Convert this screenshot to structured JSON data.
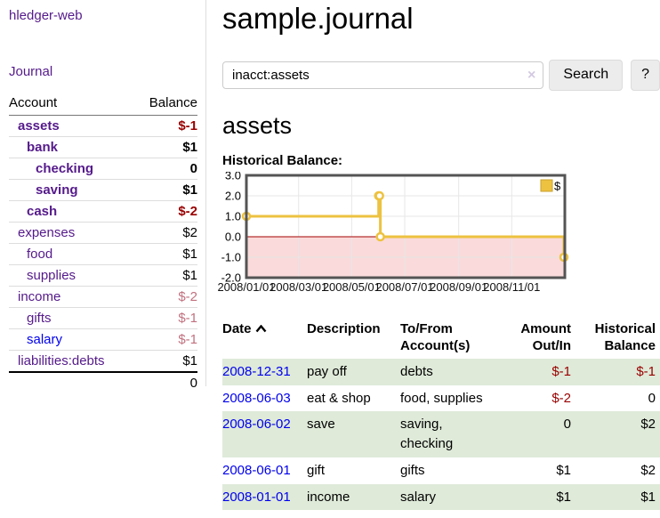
{
  "app": {
    "title": "hledger-web",
    "nav": {
      "journal": "Journal"
    }
  },
  "sidebar": {
    "headers": {
      "account": "Account",
      "balance": "Balance"
    },
    "rows": [
      {
        "account": "assets",
        "balance": "$-1",
        "depth": 1,
        "bold": true,
        "neg": "strong",
        "link": "purple"
      },
      {
        "account": "bank",
        "balance": "$1",
        "depth": 2,
        "bold": true,
        "neg": "",
        "link": "purple"
      },
      {
        "account": "checking",
        "balance": "0",
        "depth": 3,
        "bold": true,
        "neg": "",
        "link": "purple"
      },
      {
        "account": "saving",
        "balance": "$1",
        "depth": 3,
        "bold": true,
        "neg": "",
        "link": "purple"
      },
      {
        "account": "cash",
        "balance": "$-2",
        "depth": 2,
        "bold": true,
        "neg": "strong",
        "link": "purple"
      },
      {
        "account": "expenses",
        "balance": "$2",
        "depth": 1,
        "bold": false,
        "neg": "",
        "link": "purple"
      },
      {
        "account": "food",
        "balance": "$1",
        "depth": 2,
        "bold": false,
        "neg": "",
        "link": "purple"
      },
      {
        "account": "supplies",
        "balance": "$1",
        "depth": 2,
        "bold": false,
        "neg": "",
        "link": "purple"
      },
      {
        "account": "income",
        "balance": "$-2",
        "depth": 1,
        "bold": false,
        "neg": "muted",
        "link": "purple"
      },
      {
        "account": "gifts",
        "balance": "$-1",
        "depth": 2,
        "bold": false,
        "neg": "muted",
        "link": "purple"
      },
      {
        "account": "salary",
        "balance": "$-1",
        "depth": 2,
        "bold": false,
        "neg": "muted",
        "link": "blue"
      },
      {
        "account": "liabilities:debts",
        "balance": "$1",
        "depth": 1,
        "bold": false,
        "neg": "",
        "link": "purple"
      }
    ],
    "total": "0"
  },
  "main": {
    "title": "sample.journal",
    "search": {
      "value": "inacct:assets",
      "clear_icon": "×",
      "button_label": "Search",
      "help_label": "?"
    },
    "account_heading": "assets",
    "chart_label": "Historical Balance:"
  },
  "chart_data": {
    "type": "line",
    "title": "Historical Balance",
    "step": true,
    "x_range": [
      "2008-01-01",
      "2009-01-01"
    ],
    "ylim": [
      -2,
      3
    ],
    "y_ticks": [
      "3.0",
      "2.0",
      "1.0",
      "0.0",
      "-1.0",
      "-2.0"
    ],
    "x_ticks": [
      {
        "date": "2008-01-01",
        "label": "2008/01/01"
      },
      {
        "date": "2008-03-01",
        "label": "2008/03/01"
      },
      {
        "date": "2008-05-01",
        "label": "2008/05/01"
      },
      {
        "date": "2008-07-01",
        "label": "2008/07/01"
      },
      {
        "date": "2008-09-01",
        "label": "2008/09/01"
      },
      {
        "date": "2008-11-01",
        "label": "2008/11/01"
      }
    ],
    "series": [
      {
        "name": "$",
        "color": "#edc240",
        "points": [
          {
            "date": "2008-01-01",
            "value": 1
          },
          {
            "date": "2008-06-01",
            "value": 2
          },
          {
            "date": "2008-06-02",
            "value": 2
          },
          {
            "date": "2008-06-03",
            "value": 0
          },
          {
            "date": "2008-12-31",
            "value": -1
          }
        ]
      }
    ],
    "legend": {
      "label": "$",
      "position": "top-right"
    },
    "grid": true,
    "grid_color": "#e7e7e7",
    "border_color": "#545454",
    "zero_line_color": "#a40000",
    "negative_fill": "#fadada"
  },
  "register": {
    "headers": {
      "date": "Date",
      "description": "Description",
      "account": "To/From Account(s)",
      "amount": "Amount Out/In",
      "balance": "Historical Balance"
    },
    "rows": [
      {
        "date": "2008-12-31",
        "description": "pay off",
        "accounts": "debts",
        "amount": "$-1",
        "balance": "$-1"
      },
      {
        "date": "2008-06-03",
        "description": "eat & shop",
        "accounts": "food, supplies",
        "amount": "$-2",
        "balance": "0"
      },
      {
        "date": "2008-06-02",
        "description": "save",
        "accounts": "saving, checking",
        "amount": "0",
        "balance": "$2"
      },
      {
        "date": "2008-06-01",
        "description": "gift",
        "accounts": "gifts",
        "amount": "$1",
        "balance": "$2"
      },
      {
        "date": "2008-01-01",
        "description": "income",
        "accounts": "salary",
        "amount": "$1",
        "balance": "$1"
      }
    ]
  }
}
